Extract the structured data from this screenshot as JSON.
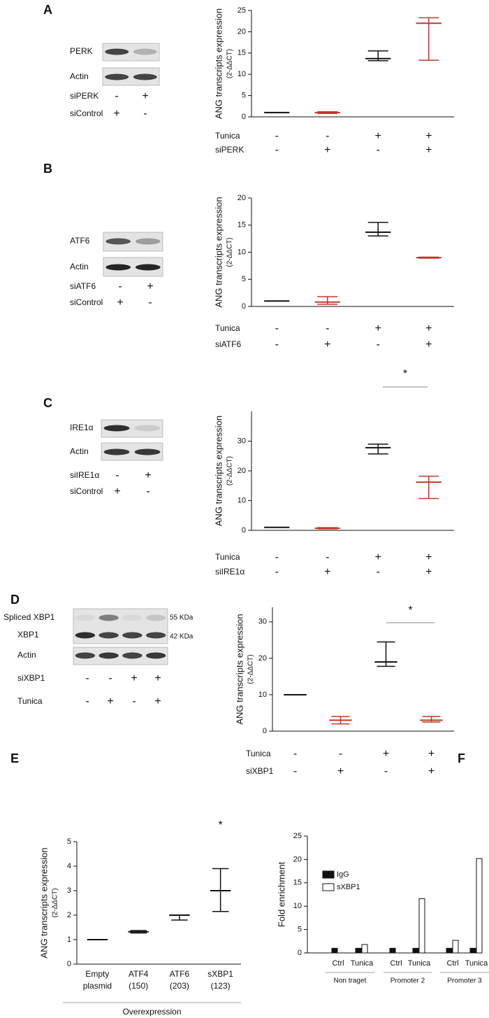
{
  "blots": [
    {
      "panel": "A",
      "rows": [
        "PERK",
        "Actin"
      ],
      "conditions": [
        {
          "name": "siPERK",
          "signs": [
            "-",
            "+"
          ]
        },
        {
          "name": "siControl",
          "signs": [
            "+",
            "-"
          ]
        }
      ]
    },
    {
      "panel": "B",
      "rows": [
        "ATF6",
        "Actin"
      ],
      "conditions": [
        {
          "name": "siATF6",
          "signs": [
            "-",
            "+"
          ]
        },
        {
          "name": "siControl",
          "signs": [
            "+",
            "-"
          ]
        }
      ]
    },
    {
      "panel": "C",
      "rows": [
        "IRE1α",
        "Actin"
      ],
      "conditions": [
        {
          "name": "siIRE1α",
          "signs": [
            "-",
            "+"
          ]
        },
        {
          "name": "siControl",
          "signs": [
            "+",
            "-"
          ]
        }
      ]
    },
    {
      "panel": "D",
      "rows": [
        "Spliced XBP1",
        "XBP1",
        "Actin"
      ],
      "sizes": [
        "55 KDa",
        "42 KDa"
      ],
      "conditions": [
        {
          "name": "siXBP1",
          "signs": [
            "-",
            "-",
            "+",
            "+"
          ]
        },
        {
          "name": "Tunica",
          "signs": [
            "-",
            "+",
            "-",
            "+"
          ]
        }
      ]
    }
  ],
  "chart_data": [
    {
      "type": "errorbar",
      "ylabel": "ANG transcripts expression",
      "ylabel_unit": "(2-ΔΔCT)",
      "conditions": [
        {
          "name": "Tunica",
          "signs": [
            "-",
            "-",
            "+",
            "+"
          ]
        },
        {
          "name": "siPERK",
          "signs": [
            "-",
            "+",
            "-",
            "+"
          ]
        }
      ],
      "values": [
        1,
        1,
        13.7,
        22
      ],
      "lows": [
        1,
        0.8,
        13.2,
        13.3
      ],
      "highs": [
        1,
        1.2,
        15.5,
        23.3
      ],
      "colors": [
        "#111111",
        "#c0392b",
        "#111111",
        "#c0392b"
      ],
      "ylim": [
        0,
        25
      ],
      "yticks": [
        0,
        5,
        10,
        15,
        20,
        25
      ]
    },
    {
      "type": "errorbar",
      "ylabel": "ANG transcripts expression",
      "ylabel_unit": "(2-ΔΔCT)",
      "conditions": [
        {
          "name": "Tunica",
          "signs": [
            "-",
            "-",
            "+",
            "+"
          ]
        },
        {
          "name": "siATF6",
          "signs": [
            "-",
            "+",
            "-",
            "+"
          ]
        }
      ],
      "values": [
        1,
        0.8,
        13.7,
        9
      ],
      "lows": [
        1,
        0.4,
        13,
        8.9
      ],
      "highs": [
        1,
        1.8,
        15.5,
        9.1
      ],
      "colors": [
        "#111111",
        "#c0392b",
        "#111111",
        "#c0392b"
      ],
      "ylim": [
        0,
        20
      ],
      "yticks": [
        0,
        5,
        10,
        15,
        20
      ]
    },
    {
      "type": "errorbar",
      "ylabel": "ANG transcripts expression",
      "ylabel_unit": "(2-ΔΔCT)",
      "annotation": "*",
      "conditions": [
        {
          "name": "Tunica",
          "signs": [
            "-",
            "-",
            "+",
            "+"
          ]
        },
        {
          "name": "siIRE1α",
          "signs": [
            "-",
            "+",
            "-",
            "+"
          ]
        }
      ],
      "values": [
        1,
        0.7,
        27.8,
        16.2
      ],
      "lows": [
        1,
        0.5,
        25.7,
        10.7
      ],
      "highs": [
        1,
        0.9,
        29,
        18.2
      ],
      "colors": [
        "#111111",
        "#c0392b",
        "#111111",
        "#c0392b"
      ],
      "ylim": [
        0,
        40
      ],
      "yticks": [
        0,
        10,
        20,
        30
      ]
    },
    {
      "type": "errorbar",
      "ylabel": "ANG transcripts expression",
      "ylabel_unit": "(2-ΔΔCT)",
      "annotation": "*",
      "conditions": [
        {
          "name": "Tunica",
          "signs": [
            "-",
            "-",
            "+",
            "+"
          ]
        },
        {
          "name": "siXBP1",
          "signs": [
            "-",
            "+",
            "-",
            "+"
          ]
        }
      ],
      "values": [
        10,
        3,
        19,
        3
      ],
      "lows": [
        10,
        2,
        17.8,
        2.5
      ],
      "highs": [
        10,
        4,
        24.5,
        4
      ],
      "colors": [
        "#111111",
        "#c0392b",
        "#111111",
        "#c0392b"
      ],
      "ylim": [
        0,
        34
      ],
      "yticks": [
        0,
        10,
        20,
        30
      ]
    },
    {
      "type": "errorbar",
      "panel": "E",
      "ylabel": "ANG transcripts expression",
      "ylabel_unit": "(2-ΔΔCT)",
      "annotation": "*",
      "categories": [
        [
          "Empty",
          "plasmid"
        ],
        [
          "ATF4",
          "(150)"
        ],
        [
          "ATF6",
          "(203)"
        ],
        [
          "sXBP1",
          "(123)"
        ]
      ],
      "xlabel": "Overexpression",
      "values": [
        1,
        1.32,
        2,
        3
      ],
      "lows": [
        1,
        1.27,
        1.8,
        2.15
      ],
      "highs": [
        1,
        1.37,
        2,
        3.9
      ],
      "colors": [
        "#111111",
        "#111111",
        "#111111",
        "#111111"
      ],
      "ylim": [
        0,
        5
      ],
      "yticks": [
        0,
        1,
        2,
        3,
        4,
        5
      ]
    },
    {
      "type": "bar",
      "panel": "F",
      "ylabel": "Fold enrichment",
      "categories": [
        "Ctrl",
        "Tunica",
        "Ctrl",
        "Tunica",
        "Ctrl",
        "Tunica"
      ],
      "groups": [
        "Non traget",
        "Promoter 2",
        "Promoter 3"
      ],
      "series": [
        {
          "name": "IgG",
          "color": "#111111",
          "values": [
            1,
            1,
            1,
            1,
            1,
            1
          ]
        },
        {
          "name": "sXBP1",
          "color": "#ffffff",
          "values": [
            0,
            1.8,
            0,
            11.6,
            2.7,
            20.2
          ]
        }
      ],
      "ylim": [
        0,
        25
      ],
      "yticks": [
        0,
        5,
        10,
        15,
        20,
        25
      ]
    }
  ]
}
